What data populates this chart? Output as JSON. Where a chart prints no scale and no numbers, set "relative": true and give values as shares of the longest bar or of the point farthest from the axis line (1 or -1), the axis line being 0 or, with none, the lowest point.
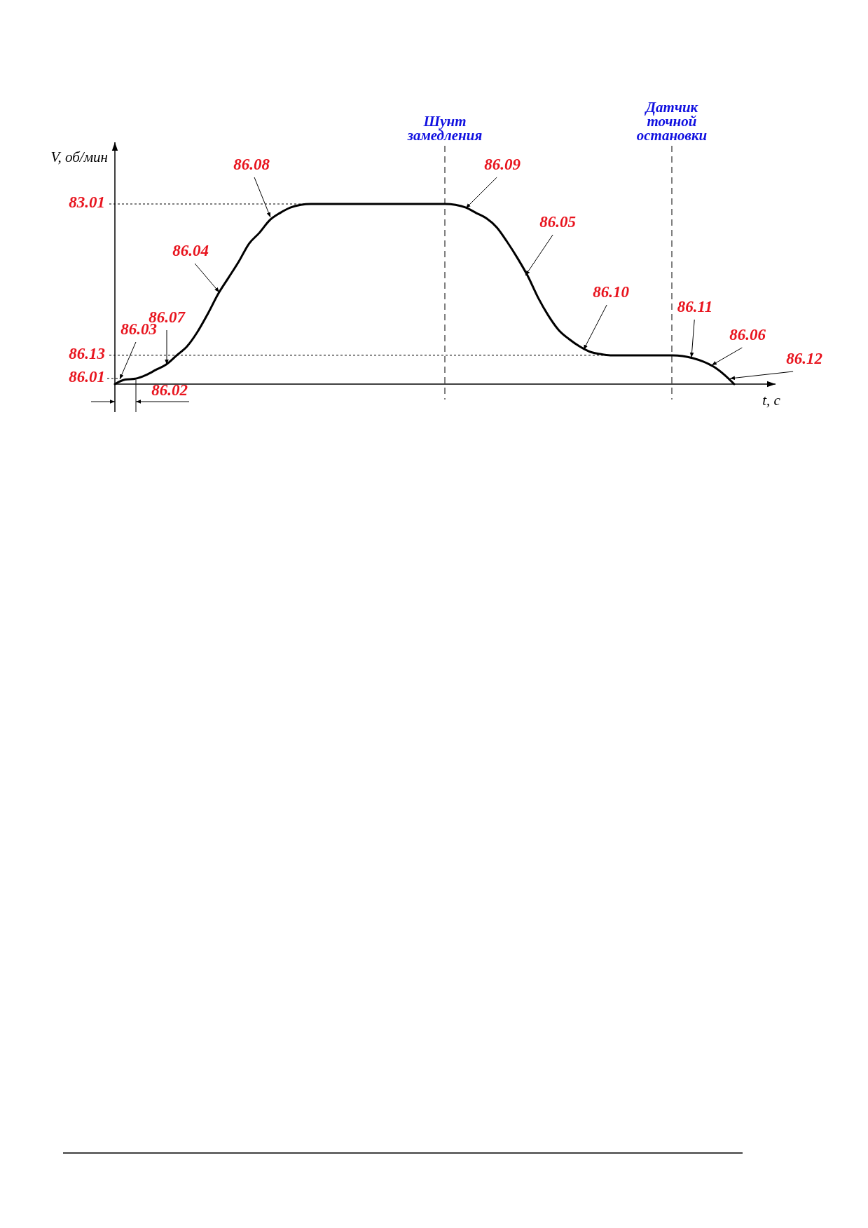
{
  "chart_data": {
    "type": "line",
    "relative": true,
    "xlabel": "t, с",
    "ylabel": "V, об/мин",
    "categories": [
      null,
      null,
      null,
      null,
      null,
      null,
      null,
      null,
      null,
      null,
      null,
      null,
      null,
      null,
      null,
      null,
      null,
      null,
      null,
      null,
      null,
      null,
      null,
      null,
      null,
      null,
      null,
      null,
      null,
      null,
      null,
      null,
      null,
      null,
      null,
      null,
      null,
      null,
      null,
      null,
      null,
      null,
      null,
      null,
      null,
      null,
      null,
      null,
      null,
      null,
      null,
      null,
      null,
      null,
      null,
      null,
      null,
      null,
      null,
      null,
      null
    ],
    "series": [
      {
        "color": "#000000",
        "values": [
          0,
          0.025,
          0.03,
          0.05,
          0.08,
          0.11,
          0.16,
          0.21,
          0.29,
          0.39,
          0.5,
          0.59,
          0.68,
          0.78,
          0.84,
          0.91,
          0.95,
          0.98,
          0.995,
          1,
          1,
          1,
          1,
          1,
          1,
          1,
          1,
          1,
          1,
          1,
          1,
          1,
          1,
          0.995,
          0.98,
          0.95,
          0.92,
          0.87,
          0.79,
          0.7,
          0.6,
          0.48,
          0.38,
          0.3,
          0.25,
          0.21,
          0.18,
          0.167,
          0.16,
          0.16,
          0.16,
          0.16,
          0.16,
          0.16,
          0.16,
          0.156,
          0.144,
          0.125,
          0.097,
          0.054,
          0
        ]
      }
    ],
    "ref_lines": [
      {
        "axis": "y",
        "value": 1,
        "color": "#000000",
        "line_style": "dotted"
      },
      {
        "axis": "y",
        "value": 0.16,
        "color": "#000000",
        "line_style": "dotted"
      }
    ],
    "annotations": [
      "Шунт\nзамедления",
      "Датчик\nточной\nостановки",
      "86.03",
      "86.07",
      "86.02",
      "86.04",
      "86.08",
      "86.09",
      "86.05",
      "86.10",
      "86.11",
      "86.06",
      "86.12",
      "83.01",
      "86.13",
      "86.01"
    ]
  }
}
